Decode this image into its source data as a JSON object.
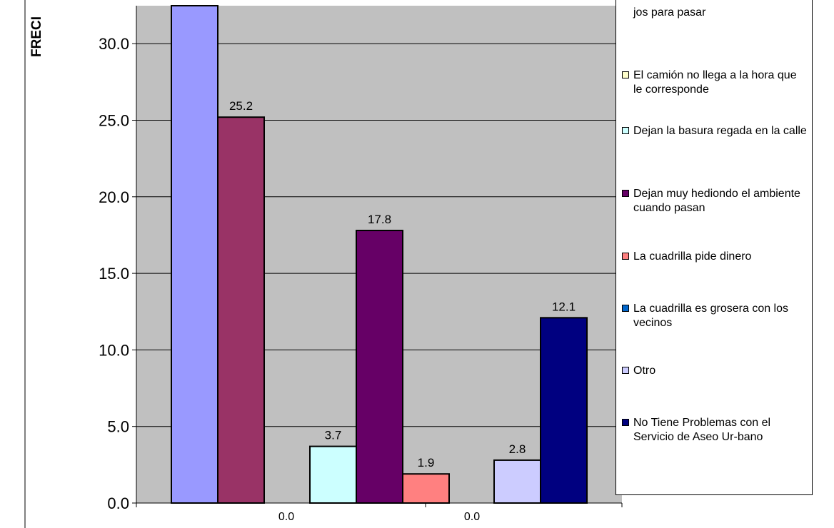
{
  "chart_data": {
    "type": "bar",
    "ylabel": "FRECI",
    "ylim": [
      0,
      32.5
    ],
    "yticks": [
      "0.0",
      "5.0",
      "10.0",
      "15.0",
      "20.0",
      "25.0",
      "30.0"
    ],
    "category_labels": [
      "0.0",
      "0.0"
    ],
    "grid": true,
    "legend_position": "right",
    "series": [
      {
        "name": "",
        "value": 32.5,
        "label": "",
        "color": "#9999ff"
      },
      {
        "name": "",
        "value": 25.2,
        "label": "25.2",
        "color": "#993366"
      },
      {
        "name": "",
        "value": 3.7,
        "label": "3.7",
        "color": "#ccffff"
      },
      {
        "name": "",
        "value": 17.8,
        "label": "17.8",
        "color": "#660066"
      },
      {
        "name": "",
        "value": 1.9,
        "label": "1.9",
        "color": "#ff8080"
      },
      {
        "name": "",
        "value": 2.8,
        "label": "2.8",
        "color": "#ccccff"
      },
      {
        "name": "",
        "value": 12.1,
        "label": "12.1",
        "color": "#000080"
      }
    ]
  },
  "legend": {
    "items": [
      {
        "text": "jos para pasar",
        "color": "",
        "swatch": false
      },
      {
        "text": "El camión no llega a la hora que le corresponde",
        "color": "#ffffcc",
        "swatch": true
      },
      {
        "text": "Dejan la basura regada en la calle",
        "color": "#ccffff",
        "swatch": true
      },
      {
        "text": "Dejan muy hediondo el ambiente cuando pasan",
        "color": "#660066",
        "swatch": true
      },
      {
        "text": "La cuadrilla pide dinero",
        "color": "#ff8080",
        "swatch": true
      },
      {
        "text": "La cuadrilla es grosera con los vecinos",
        "color": "#0066cc",
        "swatch": true
      },
      {
        "text": "Otro",
        "color": "#ccccff",
        "swatch": true
      },
      {
        "text": "No Tiene Problemas con el Servicio de Aseo Ur-bano",
        "color": "#000080",
        "swatch": true
      }
    ]
  }
}
